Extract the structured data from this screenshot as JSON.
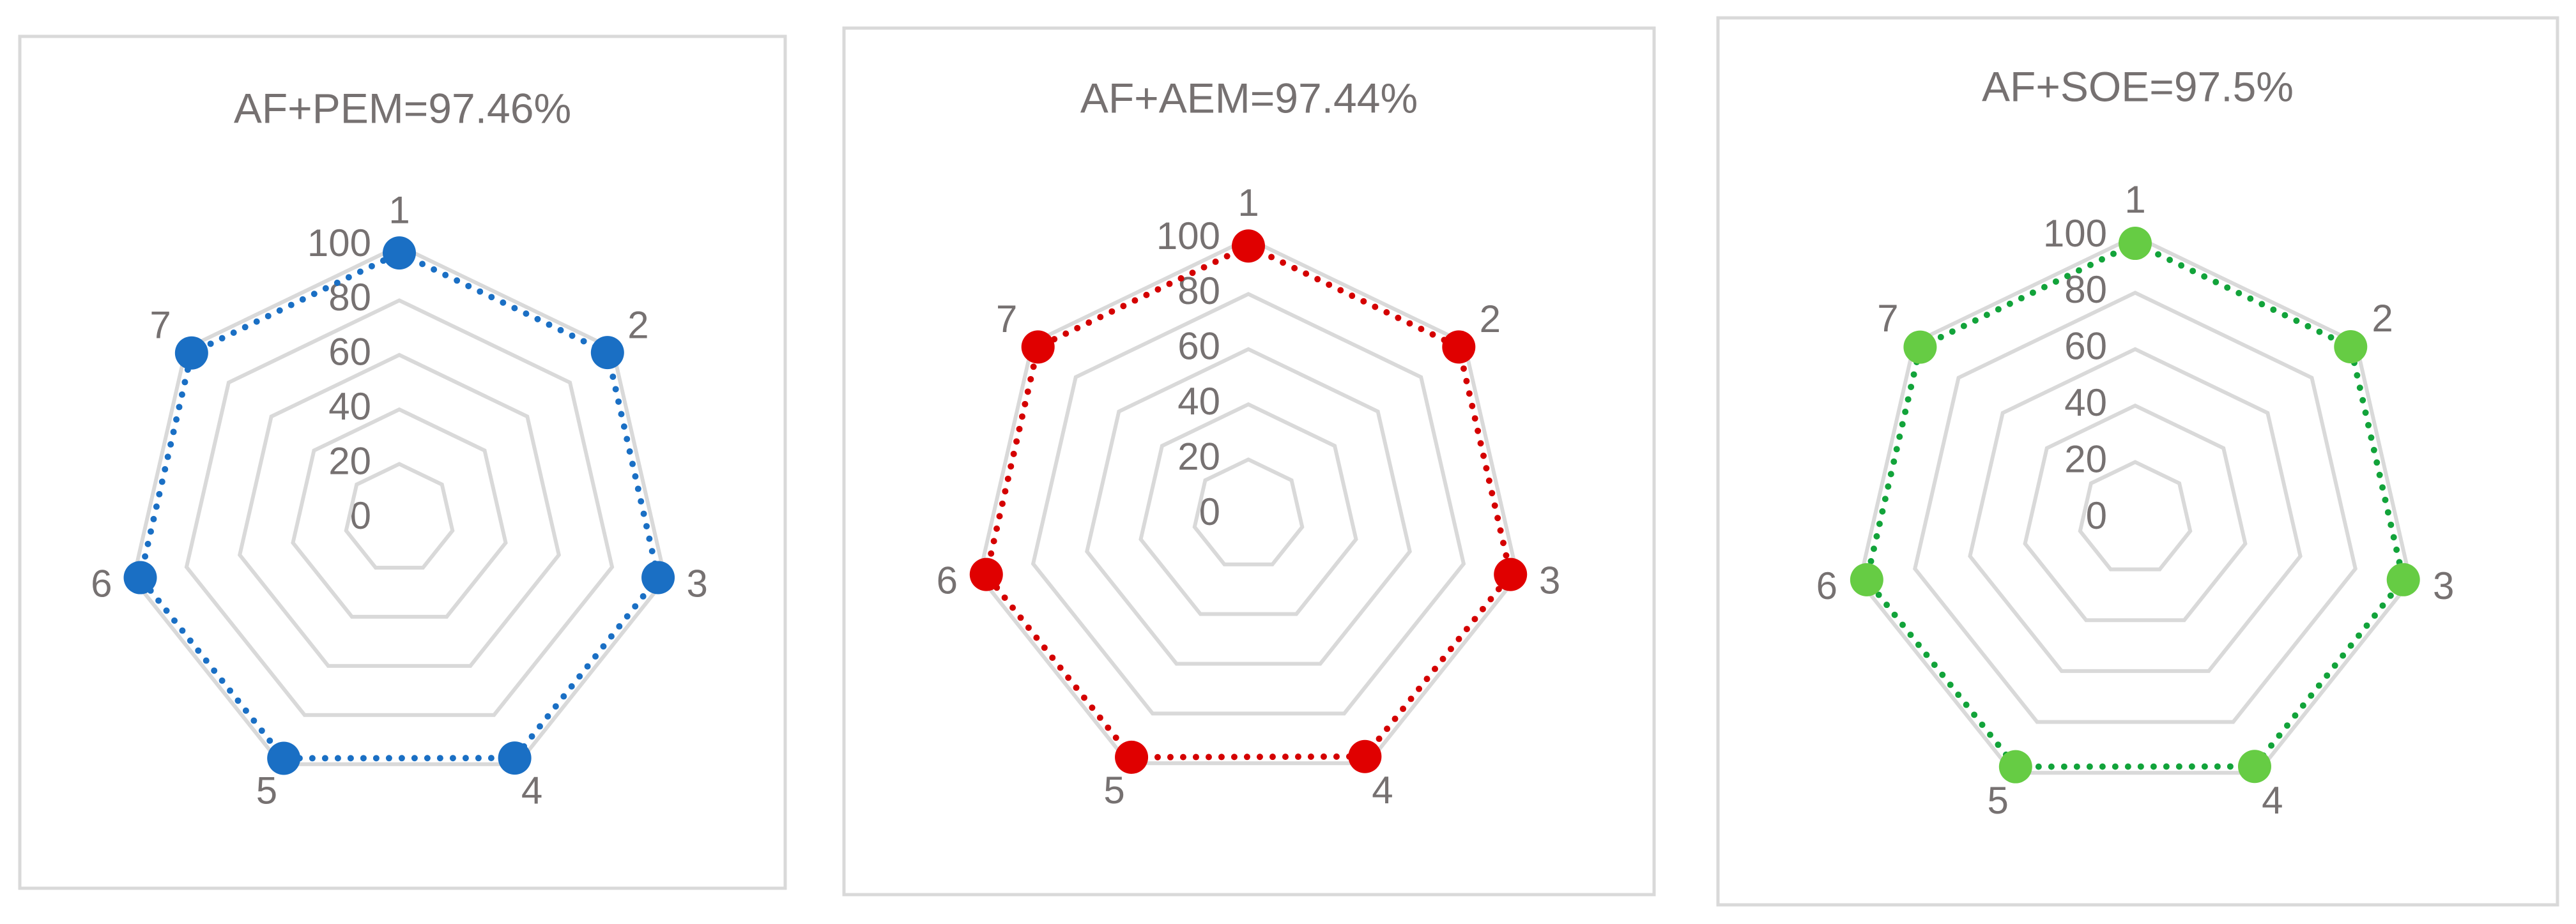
{
  "chart_data": [
    {
      "type": "radar",
      "title": "AF+PEM=97.46%",
      "categories": [
        "1",
        "2",
        "3",
        "4",
        "5",
        "6",
        "7"
      ],
      "values": [
        97.4,
        97.6,
        97.3,
        97.5,
        97.6,
        97.4,
        97.4
      ],
      "color": "#1a6fc4",
      "marker_color": "#1a6fc4",
      "ylim": [
        0,
        100
      ],
      "yticks": [
        0,
        20,
        40,
        60,
        80,
        100
      ],
      "grid": true
    },
    {
      "type": "radar",
      "title": "AF+AEM=97.44%",
      "categories": [
        "1",
        "2",
        "3",
        "4",
        "5",
        "6",
        "7"
      ],
      "values": [
        97.4,
        97.5,
        97.4,
        97.3,
        97.6,
        97.4,
        97.5
      ],
      "color": "#d40000",
      "marker_color": "#e00000",
      "ylim": [
        0,
        100
      ],
      "yticks": [
        0,
        20,
        40,
        60,
        80,
        100
      ],
      "grid": true
    },
    {
      "type": "radar",
      "title": "AF+SOE=97.5%",
      "categories": [
        "1",
        "2",
        "3",
        "4",
        "5",
        "6",
        "7"
      ],
      "values": [
        97.5,
        97.6,
        97.4,
        97.5,
        97.6,
        97.5,
        97.4
      ],
      "color": "#12a33a",
      "marker_color": "#66cc44",
      "ylim": [
        0,
        100
      ],
      "yticks": [
        0,
        20,
        40,
        60,
        80,
        100
      ],
      "grid": true
    }
  ]
}
